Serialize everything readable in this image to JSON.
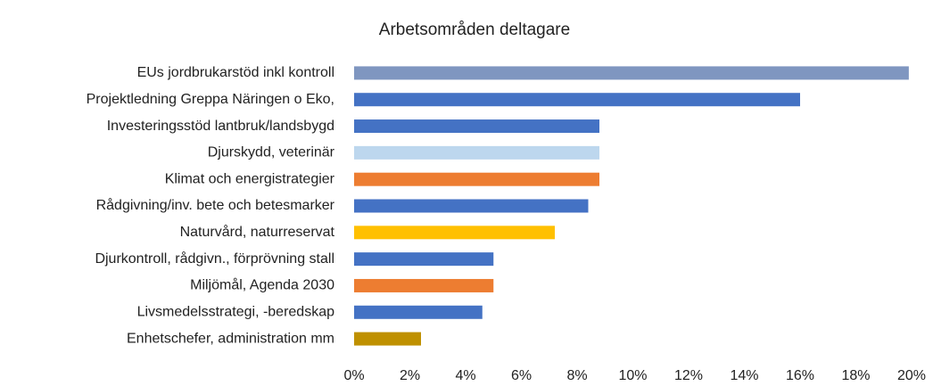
{
  "chart_data": {
    "type": "bar",
    "orientation": "horizontal",
    "title": "Arbetsområden deltagare",
    "categories": [
      "EUs jordbrukarstöd inkl kontroll",
      "Projektledning Greppa Näringen o Eko,",
      "Investeringsstöd lantbruk/landsbygd",
      "Djurskydd, veterinär",
      "Klimat och energistrategier",
      "Rådgivning/inv. bete och betesmarker",
      "Naturvård, naturreservat",
      "Djurkontroll, rådgivn., förprövning stall",
      "Miljömål, Agenda 2030",
      "Livsmedelsstrategi, -beredskap",
      "Enhetschefer, administration mm"
    ],
    "values": [
      19.9,
      16.0,
      8.8,
      8.8,
      8.8,
      8.4,
      7.2,
      5.0,
      5.0,
      4.6,
      2.4
    ],
    "colors": [
      "#7f96c0",
      "#4472c4",
      "#4472c4",
      "#bdd7ee",
      "#ed7d31",
      "#4472c4",
      "#ffc000",
      "#4472c4",
      "#ed7d31",
      "#4472c4",
      "#bf9000"
    ],
    "xlim": [
      0,
      20
    ],
    "xticks": [
      {
        "value": 0,
        "label": "0%"
      },
      {
        "value": 2,
        "label": "2%"
      },
      {
        "value": 4,
        "label": "4%"
      },
      {
        "value": 6,
        "label": "6%"
      },
      {
        "value": 8,
        "label": "8%"
      },
      {
        "value": 10,
        "label": "10%"
      },
      {
        "value": 12,
        "label": "12%"
      },
      {
        "value": 14,
        "label": "14%"
      },
      {
        "value": 16,
        "label": "16%"
      },
      {
        "value": 18,
        "label": "18%"
      },
      {
        "value": 20,
        "label": "20%"
      }
    ],
    "grid": false
  }
}
